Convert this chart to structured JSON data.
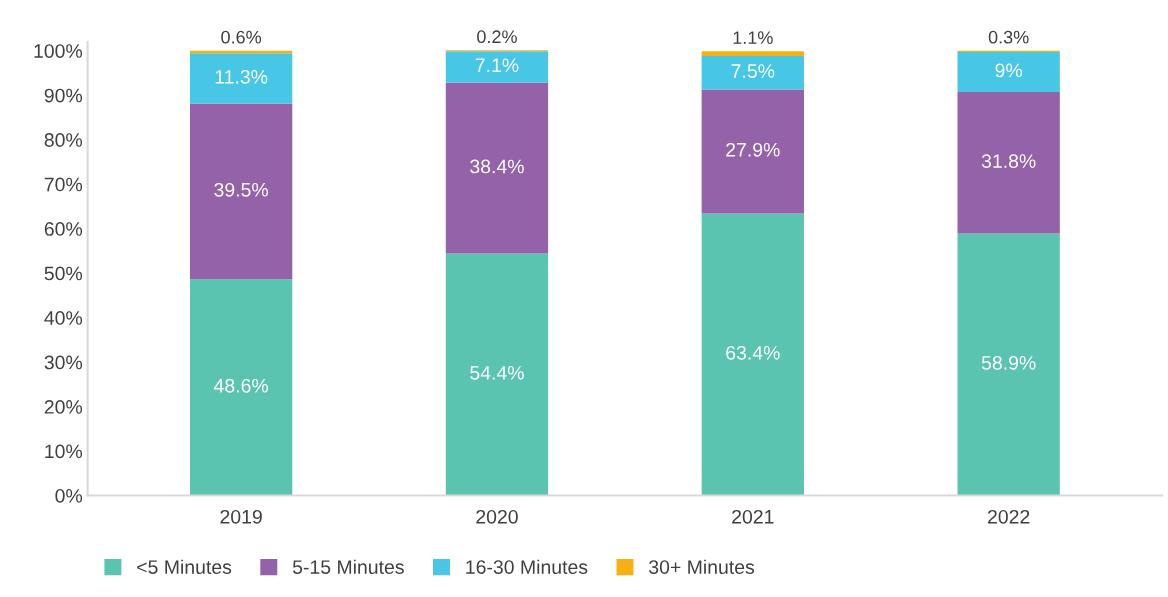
{
  "chart_data": {
    "type": "bar",
    "stacked": true,
    "categories": [
      "2019",
      "2020",
      "2021",
      "2022"
    ],
    "series": [
      {
        "name": "<5 Minutes",
        "color": "#5bc4b1",
        "values": [
          48.6,
          54.4,
          63.4,
          58.9
        ],
        "value_labels": [
          "48.6%",
          "54.4%",
          "63.4%",
          "58.9%"
        ]
      },
      {
        "name": "5-15 Minutes",
        "color": "#9362a8",
        "values": [
          39.5,
          38.4,
          27.9,
          31.8
        ],
        "value_labels": [
          "39.5%",
          "38.4%",
          "27.9%",
          "31.8%"
        ]
      },
      {
        "name": "16-30 Minutes",
        "color": "#48c6e6",
        "values": [
          11.3,
          7.1,
          7.5,
          9
        ],
        "value_labels": [
          "11.3%",
          "7.1%",
          "7.5%",
          "9%"
        ]
      },
      {
        "name": "30+ Minutes",
        "color": "#f5b014",
        "values": [
          0.6,
          0.2,
          1.1,
          0.3
        ],
        "value_labels": [
          "0.6%",
          "0.2%",
          "1.1%",
          "0.3%"
        ]
      }
    ],
    "ylim": [
      0,
      102
    ],
    "yticks": [
      {
        "value": 0,
        "label": "0%"
      },
      {
        "value": 10,
        "label": "10%"
      },
      {
        "value": 20,
        "label": "20%"
      },
      {
        "value": 30,
        "label": "30%"
      },
      {
        "value": 40,
        "label": "40%"
      },
      {
        "value": 50,
        "label": "50%"
      },
      {
        "value": 60,
        "label": "60%"
      },
      {
        "value": 70,
        "label": "70%"
      },
      {
        "value": 80,
        "label": "80%"
      },
      {
        "value": 90,
        "label": "90%"
      },
      {
        "value": 100,
        "label": "100%"
      }
    ],
    "grid": false,
    "legend": "bottom"
  }
}
